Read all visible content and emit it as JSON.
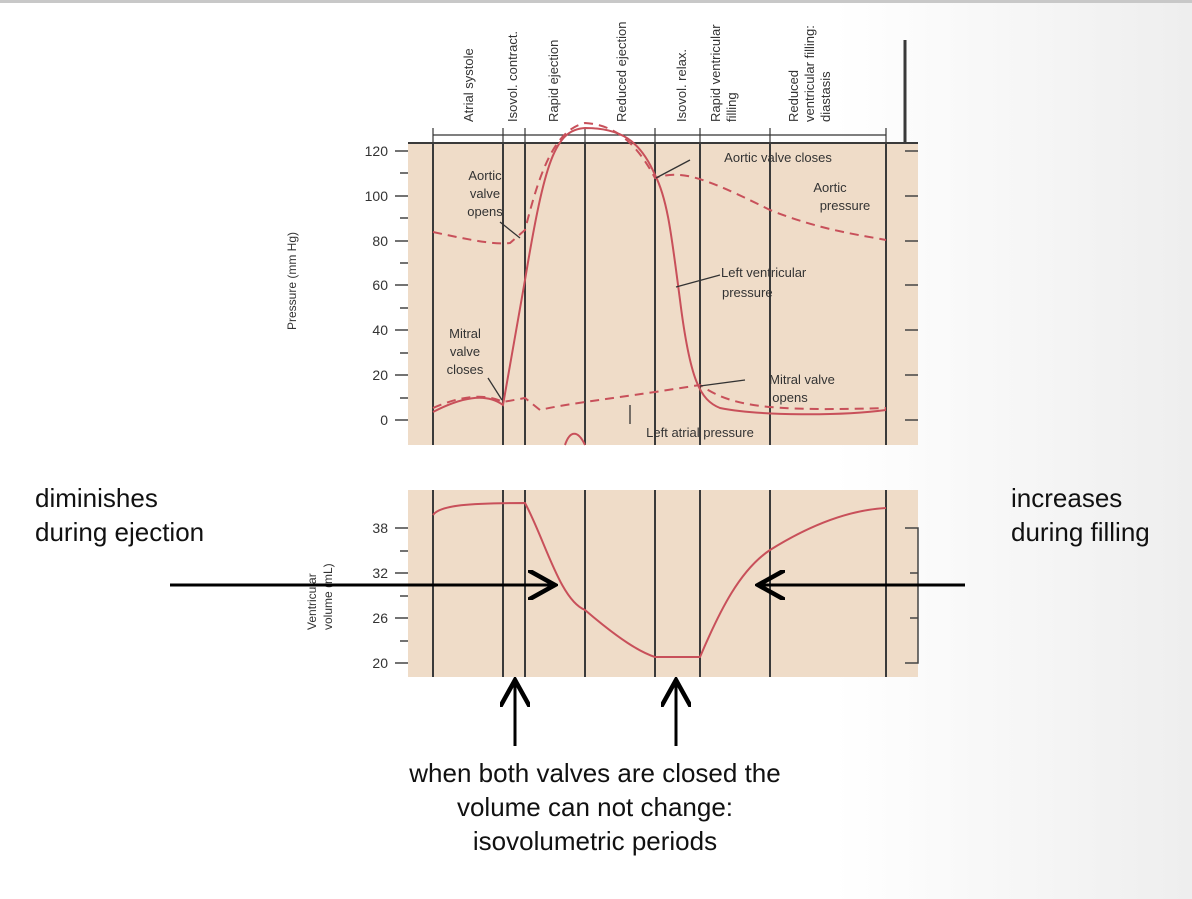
{
  "phases": [
    "Atrial systole",
    "Isovol. contract.",
    "Rapid ejection",
    "Reduced ejection",
    "Isovol. relax.",
    "Rapid ventricular",
    "filling",
    "Reduced",
    "ventricular filling:",
    "diastasis"
  ],
  "pressure_panel": {
    "ylabel": "Pressure (mm Hg)",
    "ticks": [
      "120",
      "100",
      "80",
      "60",
      "40",
      "20",
      "0"
    ],
    "labels": {
      "aortic_opens": [
        "Aortic",
        "valve",
        "opens"
      ],
      "aortic_closes": "Aortic valve closes",
      "aortic_pressure": [
        "Aortic",
        "pressure"
      ],
      "lv_pressure": [
        "Left ventricular",
        "pressure"
      ],
      "mitral_closes": [
        "Mitral",
        "valve",
        "closes"
      ],
      "mitral_opens": [
        "Mitral valve",
        "opens"
      ],
      "la_pressure": "Left atrial pressure"
    }
  },
  "volume_panel": {
    "ylabel": [
      "Ventricular",
      "volume (mL)"
    ],
    "ticks": [
      "38",
      "32",
      "26",
      "20"
    ]
  },
  "annotations": {
    "left": [
      "diminishes",
      "during ejection"
    ],
    "right": [
      "increases",
      "during filling"
    ],
    "bottom": [
      "when both valves are closed the",
      "volume can not change:",
      "isovolumetric periods"
    ]
  },
  "colors": {
    "panel_bg": "#efdcc8",
    "curve": "#c8505a",
    "grid": "#3a3a3a",
    "arrow": "#000000"
  }
}
